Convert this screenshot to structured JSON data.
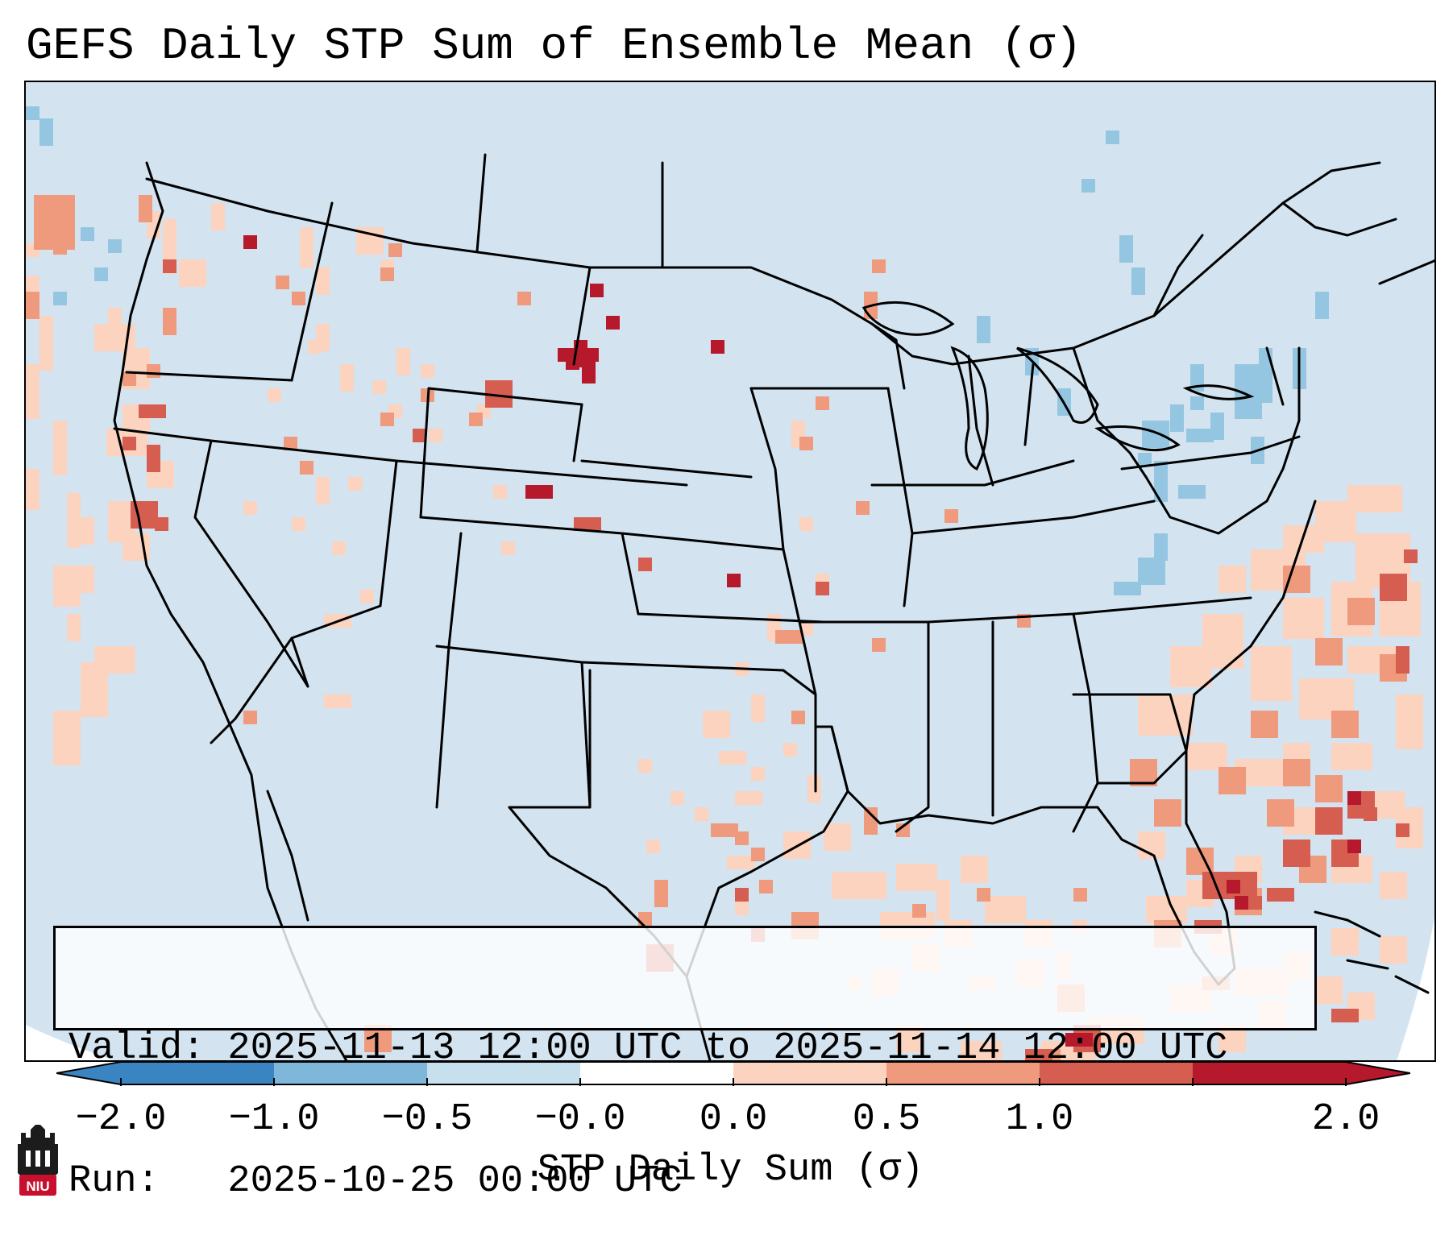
{
  "title": "GEFS Daily STP Sum of Ensemble Mean (σ)",
  "info": {
    "valid_line": "Valid: 2025-11-13 12:00 UTC to 2025-11-14 12:00 UTC",
    "run_line": "Run:   2025-10-25 00:00 UTC"
  },
  "colorbar": {
    "label": "STP Daily Sum (σ)",
    "ticks": [
      "−2.0",
      "−1.0",
      "−0.5",
      "−0.0",
      "0.0",
      "0.5",
      "1.0",
      "2.0"
    ],
    "colors": [
      "#3a84c1",
      "#7fb7db",
      "#c7e0ee",
      "#ffffff",
      "#fbd3bf",
      "#ef9a7d",
      "#d55e50",
      "#b5192b"
    ],
    "extend": "both"
  },
  "map_colors": {
    "background": "#d3e4f0",
    "light_blue": "#95c6e1",
    "pale_red": "#fbd3bf",
    "orange": "#ef9a7d",
    "red": "#d55e50",
    "dark_red": "#b5192b",
    "border": "#000000"
  },
  "logo": {
    "text": "NIU",
    "name": "niu-logo"
  }
}
